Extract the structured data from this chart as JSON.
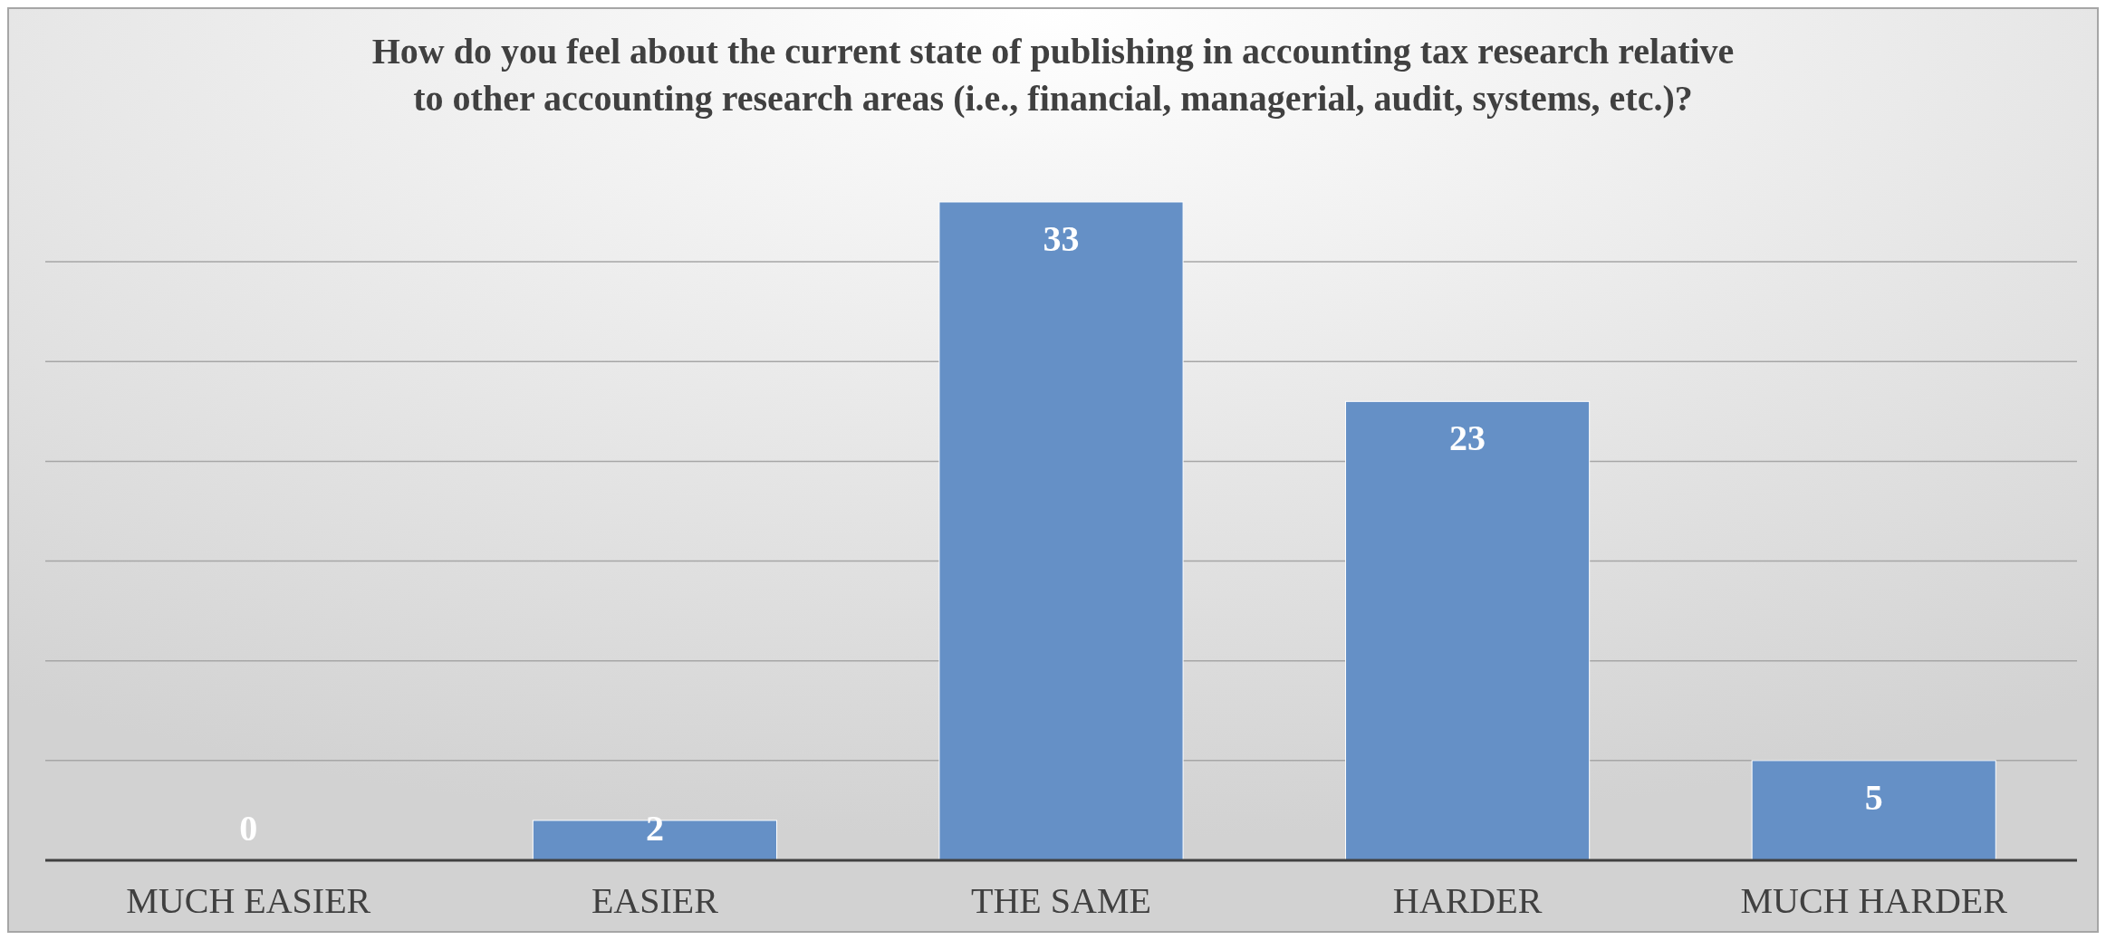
{
  "chart_data": {
    "type": "bar",
    "title": "How do you feel about the current state of publishing in accounting tax research relative\nto other accounting research areas (i.e., financial, managerial, audit, systems, etc.)?",
    "categories": [
      "MUCH EASIER",
      "EASIER",
      "THE SAME",
      "HARDER",
      "MUCH HARDER"
    ],
    "values": [
      0,
      2,
      33,
      23,
      5
    ],
    "color": "#6590c6",
    "yticks": [
      {
        "value": 0,
        "label": null
      },
      {
        "value": 5,
        "label": null
      },
      {
        "value": 10,
        "label": null
      },
      {
        "value": 15,
        "label": null
      },
      {
        "value": 20,
        "label": null
      },
      {
        "value": 25,
        "label": null
      },
      {
        "value": 30,
        "label": null
      }
    ],
    "tick_labels": "x",
    "grid": "y",
    "data_labels": true
  }
}
